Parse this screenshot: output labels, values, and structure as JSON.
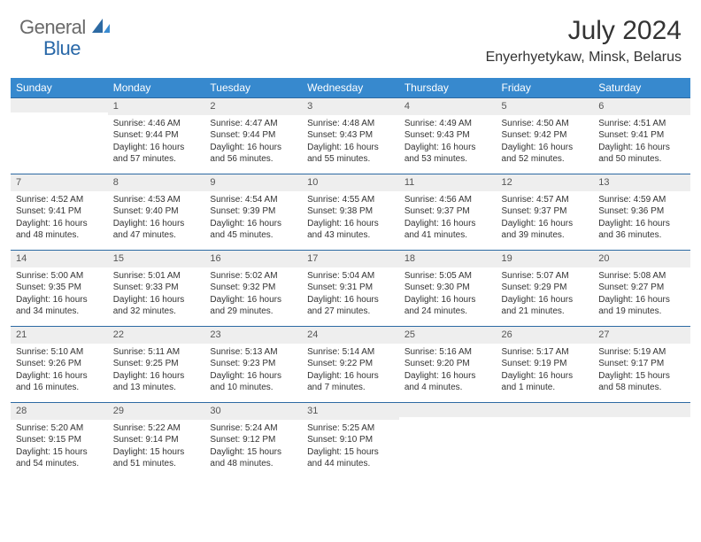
{
  "logo": {
    "text1": "General",
    "text2": "Blue"
  },
  "title": "July 2024",
  "location": "Enyerhyetykaw, Minsk, Belarus",
  "colors": {
    "header_bg": "#3789ce",
    "header_text": "#ffffff",
    "daynum_bg": "#eeeeee",
    "row_border": "#2d6aa3",
    "logo_gray": "#6a6a6a",
    "logo_blue": "#2968a8"
  },
  "weekdays": [
    "Sunday",
    "Monday",
    "Tuesday",
    "Wednesday",
    "Thursday",
    "Friday",
    "Saturday"
  ],
  "weeks": [
    [
      {
        "n": "",
        "lines": []
      },
      {
        "n": "1",
        "lines": [
          "Sunrise: 4:46 AM",
          "Sunset: 9:44 PM",
          "Daylight: 16 hours and 57 minutes."
        ]
      },
      {
        "n": "2",
        "lines": [
          "Sunrise: 4:47 AM",
          "Sunset: 9:44 PM",
          "Daylight: 16 hours and 56 minutes."
        ]
      },
      {
        "n": "3",
        "lines": [
          "Sunrise: 4:48 AM",
          "Sunset: 9:43 PM",
          "Daylight: 16 hours and 55 minutes."
        ]
      },
      {
        "n": "4",
        "lines": [
          "Sunrise: 4:49 AM",
          "Sunset: 9:43 PM",
          "Daylight: 16 hours and 53 minutes."
        ]
      },
      {
        "n": "5",
        "lines": [
          "Sunrise: 4:50 AM",
          "Sunset: 9:42 PM",
          "Daylight: 16 hours and 52 minutes."
        ]
      },
      {
        "n": "6",
        "lines": [
          "Sunrise: 4:51 AM",
          "Sunset: 9:41 PM",
          "Daylight: 16 hours and 50 minutes."
        ]
      }
    ],
    [
      {
        "n": "7",
        "lines": [
          "Sunrise: 4:52 AM",
          "Sunset: 9:41 PM",
          "Daylight: 16 hours and 48 minutes."
        ]
      },
      {
        "n": "8",
        "lines": [
          "Sunrise: 4:53 AM",
          "Sunset: 9:40 PM",
          "Daylight: 16 hours and 47 minutes."
        ]
      },
      {
        "n": "9",
        "lines": [
          "Sunrise: 4:54 AM",
          "Sunset: 9:39 PM",
          "Daylight: 16 hours and 45 minutes."
        ]
      },
      {
        "n": "10",
        "lines": [
          "Sunrise: 4:55 AM",
          "Sunset: 9:38 PM",
          "Daylight: 16 hours and 43 minutes."
        ]
      },
      {
        "n": "11",
        "lines": [
          "Sunrise: 4:56 AM",
          "Sunset: 9:37 PM",
          "Daylight: 16 hours and 41 minutes."
        ]
      },
      {
        "n": "12",
        "lines": [
          "Sunrise: 4:57 AM",
          "Sunset: 9:37 PM",
          "Daylight: 16 hours and 39 minutes."
        ]
      },
      {
        "n": "13",
        "lines": [
          "Sunrise: 4:59 AM",
          "Sunset: 9:36 PM",
          "Daylight: 16 hours and 36 minutes."
        ]
      }
    ],
    [
      {
        "n": "14",
        "lines": [
          "Sunrise: 5:00 AM",
          "Sunset: 9:35 PM",
          "Daylight: 16 hours and 34 minutes."
        ]
      },
      {
        "n": "15",
        "lines": [
          "Sunrise: 5:01 AM",
          "Sunset: 9:33 PM",
          "Daylight: 16 hours and 32 minutes."
        ]
      },
      {
        "n": "16",
        "lines": [
          "Sunrise: 5:02 AM",
          "Sunset: 9:32 PM",
          "Daylight: 16 hours and 29 minutes."
        ]
      },
      {
        "n": "17",
        "lines": [
          "Sunrise: 5:04 AM",
          "Sunset: 9:31 PM",
          "Daylight: 16 hours and 27 minutes."
        ]
      },
      {
        "n": "18",
        "lines": [
          "Sunrise: 5:05 AM",
          "Sunset: 9:30 PM",
          "Daylight: 16 hours and 24 minutes."
        ]
      },
      {
        "n": "19",
        "lines": [
          "Sunrise: 5:07 AM",
          "Sunset: 9:29 PM",
          "Daylight: 16 hours and 21 minutes."
        ]
      },
      {
        "n": "20",
        "lines": [
          "Sunrise: 5:08 AM",
          "Sunset: 9:27 PM",
          "Daylight: 16 hours and 19 minutes."
        ]
      }
    ],
    [
      {
        "n": "21",
        "lines": [
          "Sunrise: 5:10 AM",
          "Sunset: 9:26 PM",
          "Daylight: 16 hours and 16 minutes."
        ]
      },
      {
        "n": "22",
        "lines": [
          "Sunrise: 5:11 AM",
          "Sunset: 9:25 PM",
          "Daylight: 16 hours and 13 minutes."
        ]
      },
      {
        "n": "23",
        "lines": [
          "Sunrise: 5:13 AM",
          "Sunset: 9:23 PM",
          "Daylight: 16 hours and 10 minutes."
        ]
      },
      {
        "n": "24",
        "lines": [
          "Sunrise: 5:14 AM",
          "Sunset: 9:22 PM",
          "Daylight: 16 hours and 7 minutes."
        ]
      },
      {
        "n": "25",
        "lines": [
          "Sunrise: 5:16 AM",
          "Sunset: 9:20 PM",
          "Daylight: 16 hours and 4 minutes."
        ]
      },
      {
        "n": "26",
        "lines": [
          "Sunrise: 5:17 AM",
          "Sunset: 9:19 PM",
          "Daylight: 16 hours and 1 minute."
        ]
      },
      {
        "n": "27",
        "lines": [
          "Sunrise: 5:19 AM",
          "Sunset: 9:17 PM",
          "Daylight: 15 hours and 58 minutes."
        ]
      }
    ],
    [
      {
        "n": "28",
        "lines": [
          "Sunrise: 5:20 AM",
          "Sunset: 9:15 PM",
          "Daylight: 15 hours and 54 minutes."
        ]
      },
      {
        "n": "29",
        "lines": [
          "Sunrise: 5:22 AM",
          "Sunset: 9:14 PM",
          "Daylight: 15 hours and 51 minutes."
        ]
      },
      {
        "n": "30",
        "lines": [
          "Sunrise: 5:24 AM",
          "Sunset: 9:12 PM",
          "Daylight: 15 hours and 48 minutes."
        ]
      },
      {
        "n": "31",
        "lines": [
          "Sunrise: 5:25 AM",
          "Sunset: 9:10 PM",
          "Daylight: 15 hours and 44 minutes."
        ]
      },
      {
        "n": "",
        "lines": []
      },
      {
        "n": "",
        "lines": []
      },
      {
        "n": "",
        "lines": []
      }
    ]
  ]
}
